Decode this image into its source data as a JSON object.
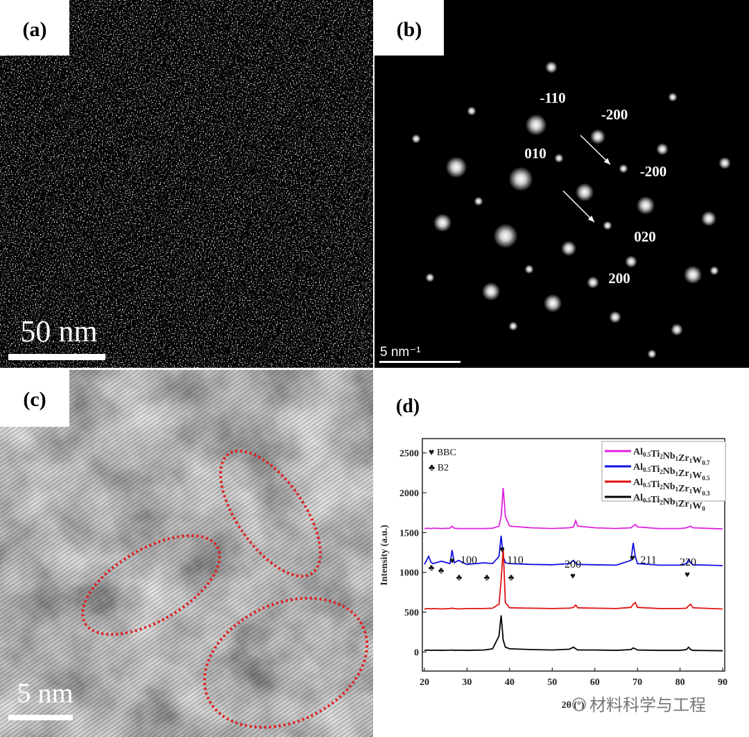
{
  "panels": {
    "labels": [
      "(a)",
      "(b)",
      "(c)",
      "(d)"
    ],
    "scale_bars": [
      "50 nm",
      "5 nm⁻¹",
      "5 nm"
    ],
    "diffraction_labels": [
      "-110",
      "-200",
      "010",
      "-200",
      "020",
      "200"
    ],
    "watermark": "材料科学与工程"
  },
  "chart_data": {
    "type": "line",
    "x_label": "2θ (°)",
    "y_label": "Intensity (a.u.)",
    "x": [
      20,
      21,
      21.5,
      22,
      24,
      26,
      26.5,
      27,
      28,
      30,
      34,
      36,
      37.5,
      38,
      38.5,
      39,
      40,
      45,
      50,
      54,
      55,
      55.5,
      56,
      60,
      65,
      68.5,
      69,
      69.5,
      70,
      75,
      80,
      81.5,
      82,
      82.5,
      83,
      90
    ],
    "series": [
      {
        "name": "Al0.5Ti2Nb1Zr1W0.7",
        "color": "#e020e0",
        "values": [
          1550,
          1555,
          1550,
          1555,
          1550,
          1555,
          1580,
          1555,
          1550,
          1550,
          1550,
          1555,
          1580,
          1700,
          2060,
          1700,
          1580,
          1560,
          1550,
          1560,
          1570,
          1650,
          1580,
          1560,
          1550,
          1560,
          1580,
          1600,
          1570,
          1550,
          1550,
          1560,
          1570,
          1580,
          1560,
          1545
        ]
      },
      {
        "name": "Al0.5Ti2Nb1Zr1W0.5",
        "color": "#1010e0",
        "values": [
          1100,
          1200,
          1130,
          1110,
          1140,
          1110,
          1280,
          1120,
          1150,
          1100,
          1120,
          1110,
          1200,
          1460,
          1200,
          1120,
          1110,
          1100,
          1095,
          1110,
          1150,
          1120,
          1100,
          1095,
          1090,
          1150,
          1370,
          1200,
          1110,
          1090,
          1090,
          1110,
          1160,
          1120,
          1095,
          1085
        ]
      },
      {
        "name": "Al0.5Ti2Nb1Zr1W0.3",
        "color": "#e01010",
        "values": [
          540,
          545,
          540,
          545,
          540,
          545,
          550,
          545,
          540,
          545,
          545,
          550,
          600,
          900,
          1300,
          620,
          555,
          550,
          545,
          550,
          560,
          590,
          555,
          550,
          545,
          560,
          600,
          620,
          560,
          545,
          545,
          550,
          580,
          600,
          555,
          540
        ]
      },
      {
        "name": "Al0.5Ti2Nb1Zr1W0",
        "color": "#000000",
        "values": [
          20,
          25,
          20,
          22,
          20,
          22,
          25,
          20,
          22,
          20,
          25,
          40,
          200,
          460,
          150,
          60,
          40,
          30,
          25,
          35,
          60,
          40,
          25,
          25,
          20,
          30,
          50,
          40,
          25,
          20,
          20,
          30,
          60,
          30,
          20,
          15
        ]
      }
    ],
    "annotations": [
      "♥ BBC",
      "♣ B2",
      "♣",
      "♣",
      "♥",
      "100",
      "♣",
      "♣",
      "♥",
      "110",
      "♣",
      "♥",
      "200",
      "♥",
      "211",
      "♥",
      "220"
    ],
    "xlim": [
      20,
      90
    ],
    "xticks": [
      20,
      30,
      40,
      50,
      60,
      70,
      80,
      90
    ],
    "ylim": [
      -240,
      2680
    ],
    "yticks": [
      0,
      500,
      1000,
      1500,
      2000,
      2500
    ]
  }
}
